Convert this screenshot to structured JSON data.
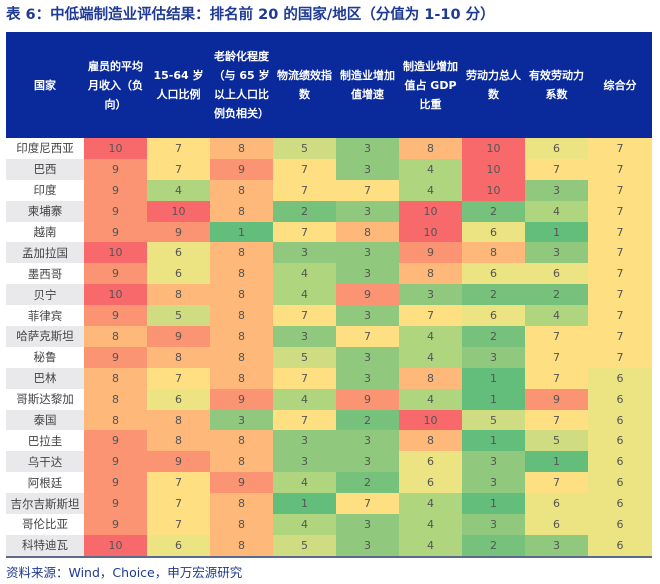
{
  "title": "表 6：中低端制造业评估结果：排名前 20 的国家/地区（分值为 1-10 分）",
  "table": {
    "headers": [
      "国家",
      "雇员的平均月收入（负向）",
      "15-64 岁人口比例",
      "老龄化程度（与 65 岁以上人口比例负相关）",
      "物流绩效指数",
      "制造业增加值增速",
      "制造业增加值占 GDP 比重",
      "劳动力总人数",
      "有效劳动力系数",
      "综合分"
    ],
    "rows": [
      {
        "country": "印度尼西亚",
        "values": [
          10,
          7,
          8,
          5,
          3,
          8,
          10,
          6,
          7
        ]
      },
      {
        "country": "巴西",
        "values": [
          9,
          7,
          9,
          7,
          3,
          4,
          10,
          7,
          7
        ]
      },
      {
        "country": "印度",
        "values": [
          9,
          4,
          8,
          7,
          7,
          4,
          10,
          3,
          7
        ]
      },
      {
        "country": "柬埔寨",
        "values": [
          9,
          10,
          8,
          2,
          3,
          10,
          2,
          4,
          7
        ]
      },
      {
        "country": "越南",
        "values": [
          9,
          9,
          1,
          7,
          8,
          10,
          6,
          1,
          7
        ]
      },
      {
        "country": "孟加拉国",
        "values": [
          10,
          6,
          8,
          3,
          3,
          9,
          8,
          3,
          7
        ]
      },
      {
        "country": "墨西哥",
        "values": [
          9,
          6,
          8,
          4,
          3,
          8,
          6,
          6,
          7
        ]
      },
      {
        "country": "贝宁",
        "values": [
          10,
          8,
          8,
          4,
          9,
          3,
          2,
          2,
          7
        ]
      },
      {
        "country": "菲律宾",
        "values": [
          9,
          5,
          8,
          7,
          3,
          7,
          6,
          4,
          7
        ]
      },
      {
        "country": "哈萨克斯坦",
        "values": [
          8,
          9,
          8,
          3,
          7,
          4,
          2,
          7,
          7
        ]
      },
      {
        "country": "秘鲁",
        "values": [
          9,
          8,
          8,
          5,
          3,
          4,
          3,
          7,
          7
        ]
      },
      {
        "country": "巴林",
        "values": [
          8,
          7,
          8,
          7,
          3,
          8,
          1,
          7,
          6
        ]
      },
      {
        "country": "哥斯达黎加",
        "values": [
          8,
          6,
          9,
          4,
          9,
          4,
          1,
          9,
          6
        ]
      },
      {
        "country": "泰国",
        "values": [
          8,
          8,
          3,
          7,
          2,
          10,
          5,
          7,
          6
        ]
      },
      {
        "country": "巴拉圭",
        "values": [
          9,
          8,
          8,
          3,
          3,
          8,
          1,
          5,
          6
        ]
      },
      {
        "country": "乌干达",
        "values": [
          9,
          9,
          8,
          3,
          3,
          6,
          3,
          1,
          6
        ]
      },
      {
        "country": "阿根廷",
        "values": [
          9,
          7,
          9,
          4,
          2,
          6,
          3,
          7,
          6
        ]
      },
      {
        "country": "吉尔吉斯斯坦",
        "values": [
          9,
          7,
          8,
          1,
          7,
          4,
          1,
          6,
          6
        ]
      },
      {
        "country": "哥伦比亚",
        "values": [
          9,
          7,
          8,
          4,
          3,
          4,
          3,
          6,
          6
        ]
      },
      {
        "country": "科特迪瓦",
        "values": [
          10,
          6,
          8,
          5,
          3,
          4,
          2,
          3,
          6
        ]
      }
    ]
  },
  "colors": {
    "header_bg": "#0a2a9c",
    "title_text": "#1f3a93",
    "scale": {
      "1": "#63be7b",
      "2": "#76c27c",
      "3": "#90c97d",
      "4": "#b0d57f",
      "5": "#cfdc81",
      "6": "#ece382",
      "7": "#fedf81",
      "8": "#fdb87a",
      "9": "#fa9473",
      "10": "#f8696b"
    }
  },
  "source": "资料来源：Wind，Choice，申万宏源研究"
}
